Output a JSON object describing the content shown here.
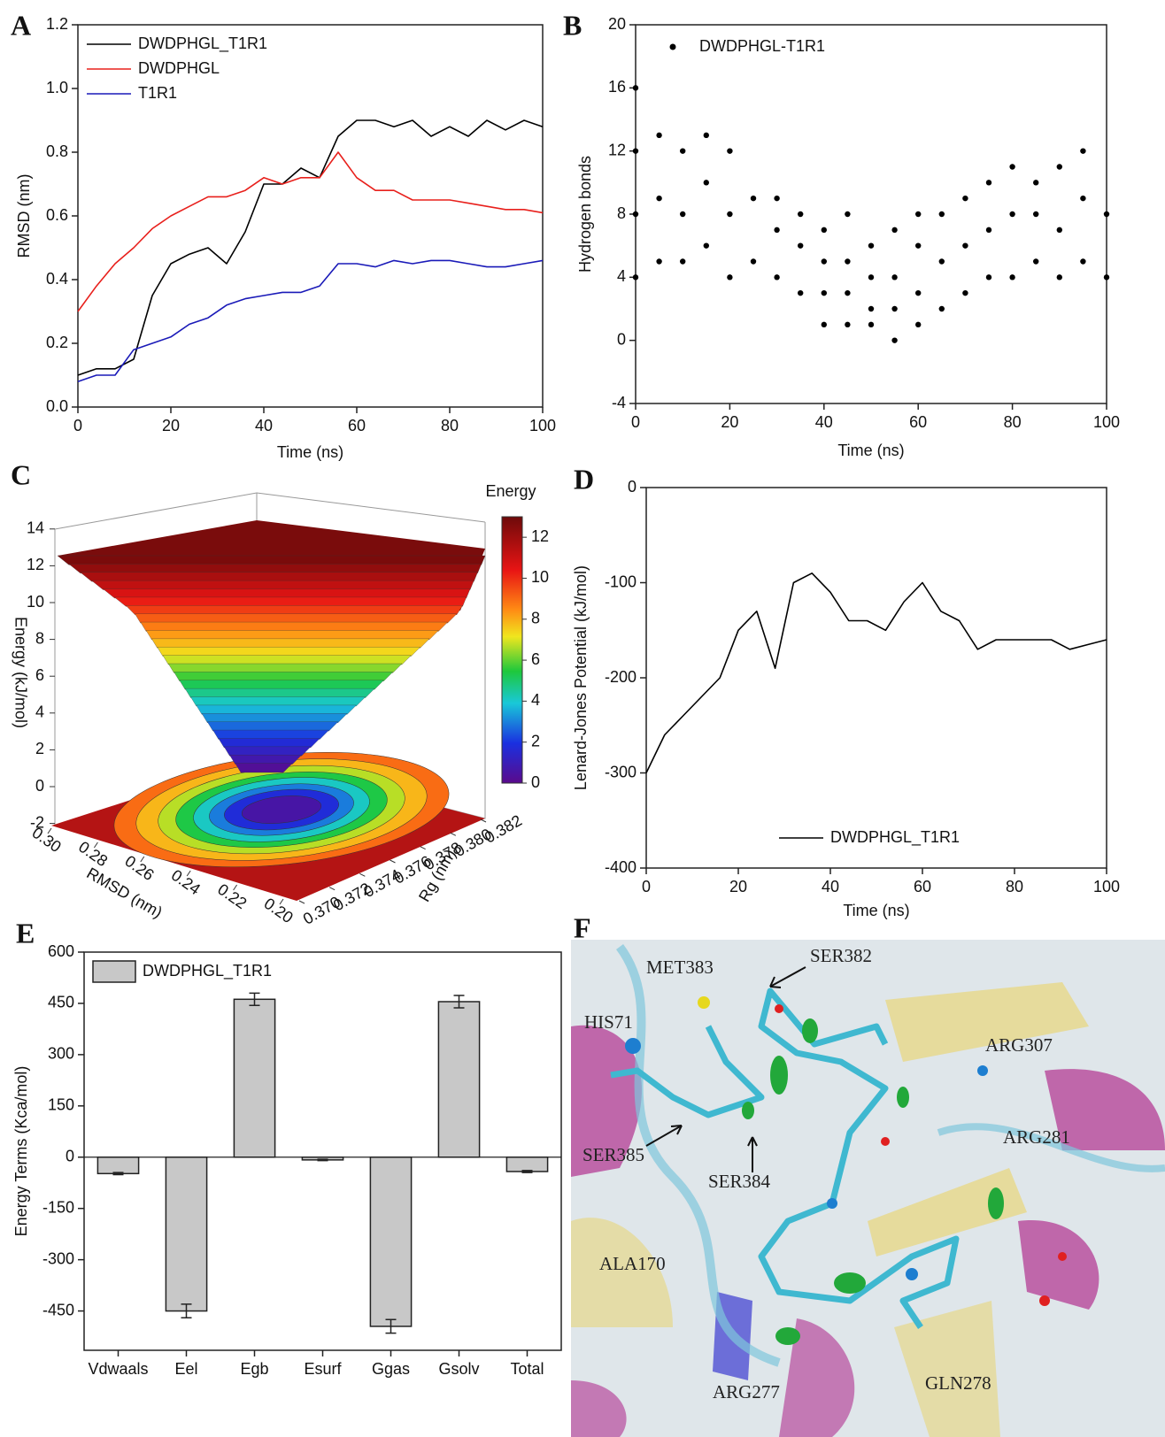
{
  "panel_labels": [
    "A",
    "B",
    "C",
    "D",
    "E",
    "F"
  ],
  "chart_data": [
    {
      "type": "line",
      "ylabel": "RMSD (nm)",
      "xlabel": "Time (ns)",
      "xlim": [
        0,
        100
      ],
      "ylim": [
        0,
        1.2
      ],
      "xticks": [
        0,
        20,
        40,
        60,
        80,
        100
      ],
      "yticks": [
        {
          "value": 0,
          "label": "0.0"
        },
        0.2,
        0.4,
        0.6,
        0.8,
        {
          "value": 1,
          "label": "1.0"
        },
        1.2
      ],
      "legend": "upper left",
      "x": [
        0,
        4,
        8,
        12,
        16,
        20,
        24,
        28,
        32,
        36,
        40,
        44,
        48,
        52,
        56,
        60,
        64,
        68,
        72,
        76,
        80,
        84,
        88,
        92,
        96,
        100
      ],
      "series": [
        {
          "name": "DWDPHGL_T1R1",
          "color": "#000000",
          "values": [
            0.1,
            0.12,
            0.12,
            0.15,
            0.35,
            0.45,
            0.48,
            0.5,
            0.45,
            0.55,
            0.7,
            0.7,
            0.75,
            0.72,
            0.85,
            0.9,
            0.9,
            0.88,
            0.9,
            0.85,
            0.88,
            0.85,
            0.9,
            0.87,
            0.9,
            0.88
          ]
        },
        {
          "name": "DWDPHGL",
          "color": "#e8201c",
          "values": [
            0.3,
            0.38,
            0.45,
            0.5,
            0.56,
            0.6,
            0.63,
            0.66,
            0.66,
            0.68,
            0.72,
            0.7,
            0.72,
            0.72,
            0.8,
            0.72,
            0.68,
            0.68,
            0.65,
            0.65,
            0.65,
            0.64,
            0.63,
            0.62,
            0.62,
            0.61
          ]
        },
        {
          "name": "T1R1",
          "color": "#1a1ab8",
          "values": [
            0.08,
            0.1,
            0.1,
            0.18,
            0.2,
            0.22,
            0.26,
            0.28,
            0.32,
            0.34,
            0.35,
            0.36,
            0.36,
            0.38,
            0.45,
            0.45,
            0.44,
            0.46,
            0.45,
            0.46,
            0.46,
            0.45,
            0.44,
            0.44,
            0.45,
            0.46
          ]
        }
      ]
    },
    {
      "type": "scatter",
      "ylabel": "Hydrogen bonds",
      "xlabel": "Time (ns)",
      "xlim": [
        0,
        100
      ],
      "ylim": [
        -4,
        20
      ],
      "xticks": [
        0,
        20,
        40,
        60,
        80,
        100
      ],
      "yticks": [
        -4,
        0,
        4,
        8,
        12,
        16,
        20
      ],
      "legend": "upper left",
      "series": [
        {
          "name": "DWDPHGL-T1R1",
          "color": "#000000",
          "x": [
            0,
            0,
            0,
            0,
            5,
            5,
            5,
            10,
            10,
            10,
            15,
            15,
            15,
            20,
            20,
            20,
            25,
            25,
            30,
            30,
            30,
            35,
            35,
            35,
            40,
            40,
            40,
            40,
            45,
            45,
            45,
            45,
            50,
            50,
            50,
            50,
            55,
            55,
            55,
            55,
            60,
            60,
            60,
            60,
            65,
            65,
            65,
            70,
            70,
            70,
            75,
            75,
            75,
            80,
            80,
            80,
            85,
            85,
            85,
            90,
            90,
            90,
            95,
            95,
            95,
            100,
            100
          ],
          "values": [
            4,
            8,
            12,
            16,
            5,
            9,
            13,
            5,
            8,
            12,
            6,
            10,
            13,
            4,
            8,
            12,
            5,
            9,
            4,
            7,
            9,
            3,
            6,
            8,
            1,
            3,
            5,
            7,
            1,
            3,
            5,
            8,
            1,
            2,
            4,
            6,
            0,
            2,
            4,
            7,
            1,
            3,
            6,
            8,
            2,
            5,
            8,
            3,
            6,
            9,
            4,
            7,
            10,
            4,
            8,
            11,
            5,
            8,
            10,
            4,
            7,
            11,
            5,
            9,
            12,
            4,
            8
          ]
        }
      ]
    },
    {
      "type": "surface3d",
      "colorbar_label": "Energy",
      "zlabel": "Energy (kJ/mol)",
      "xlabel": "RMSD (nm)",
      "ylabel": "Rg (nm)",
      "zlim": [
        -2,
        14
      ],
      "zticks": [
        -2,
        0,
        2,
        4,
        6,
        8,
        10,
        12,
        14
      ],
      "xlim": [
        0.3,
        0.2
      ],
      "xticks": [
        {
          "value": 0.3,
          "label": "0.30"
        },
        0.28,
        0.26,
        0.24,
        0.22,
        {
          "value": 0.2,
          "label": "0.20"
        }
      ],
      "ylim": [
        0.37,
        0.382
      ],
      "yticks": [
        {
          "value": 0.37,
          "label": "0.370"
        },
        0.372,
        0.374,
        0.376,
        0.378,
        {
          "value": 0.38,
          "label": "0.380"
        },
        0.382
      ],
      "clim": [
        0,
        13
      ],
      "cticks": [
        0,
        2,
        4,
        6,
        8,
        10,
        12
      ]
    },
    {
      "type": "line",
      "ylabel": "Lenard-Jones Potential (kJ/mol)",
      "xlabel": "Time (ns)",
      "xlim": [
        0,
        100
      ],
      "ylim": [
        -400,
        0
      ],
      "xticks": [
        0,
        20,
        40,
        60,
        80,
        100
      ],
      "yticks": [
        -400,
        -300,
        -200,
        -100,
        0
      ],
      "legend": "lower center",
      "x": [
        0,
        4,
        8,
        12,
        16,
        20,
        24,
        28,
        32,
        36,
        40,
        44,
        48,
        52,
        56,
        60,
        64,
        68,
        72,
        76,
        80,
        84,
        88,
        92,
        96,
        100
      ],
      "series": [
        {
          "name": "DWDPHGL_T1R1",
          "color": "#000000",
          "values": [
            -300,
            -260,
            -240,
            -220,
            -200,
            -150,
            -130,
            -190,
            -100,
            -90,
            -110,
            -140,
            -140,
            -150,
            -120,
            -100,
            -130,
            -140,
            -170,
            -160,
            -160,
            -160,
            -160,
            -170,
            -165,
            -160
          ]
        }
      ]
    },
    {
      "type": "bar",
      "ylabel": "Energy Terms (Kca/mol)",
      "ylim": [
        -565,
        600
      ],
      "yticks": [
        -450,
        -300,
        -150,
        0,
        150,
        300,
        450,
        600
      ],
      "legend": "upper left",
      "categories": [
        "Vdwaals",
        "Eel",
        "Egb",
        "Esurf",
        "Ggas",
        "Gsolv",
        "Total"
      ],
      "series": [
        {
          "name": "DWDPHGL_T1R1",
          "color": "#c8c8c8",
          "values": [
            -48,
            -450,
            462,
            -8,
            -495,
            455,
            -42
          ],
          "errors": [
            3,
            20,
            18,
            2,
            20,
            18,
            3
          ]
        }
      ]
    }
  ],
  "image_panel": {
    "labels": [
      "MET383",
      "SER382",
      "HIS71",
      "ARG307",
      "ARG281",
      "SER385",
      "SER384",
      "ALA170",
      "ARG277",
      "GLN278"
    ]
  }
}
